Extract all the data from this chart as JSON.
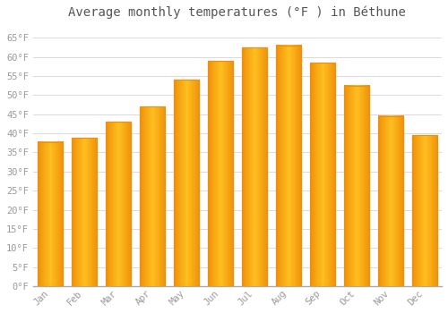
{
  "title": "Average monthly temperatures (°F ) in Béthune",
  "months": [
    "Jan",
    "Feb",
    "Mar",
    "Apr",
    "May",
    "Jun",
    "Jul",
    "Aug",
    "Sep",
    "Oct",
    "Nov",
    "Dec"
  ],
  "values": [
    37.8,
    38.8,
    43.0,
    47.0,
    54.0,
    59.0,
    62.5,
    63.0,
    58.5,
    52.5,
    44.5,
    39.5
  ],
  "bar_color_main": "#FFC020",
  "bar_color_edge": "#F0900A",
  "background_color": "#FFFFFF",
  "grid_color": "#CCCCCC",
  "ytick_labels": [
    "0°F",
    "5°F",
    "10°F",
    "15°F",
    "20°F",
    "25°F",
    "30°F",
    "35°F",
    "40°F",
    "45°F",
    "50°F",
    "55°F",
    "60°F",
    "65°F"
  ],
  "ytick_values": [
    0,
    5,
    10,
    15,
    20,
    25,
    30,
    35,
    40,
    45,
    50,
    55,
    60,
    65
  ],
  "ylim": [
    0,
    68
  ],
  "title_fontsize": 10,
  "tick_fontsize": 7.5,
  "font_color": "#999999",
  "bar_width": 0.75
}
